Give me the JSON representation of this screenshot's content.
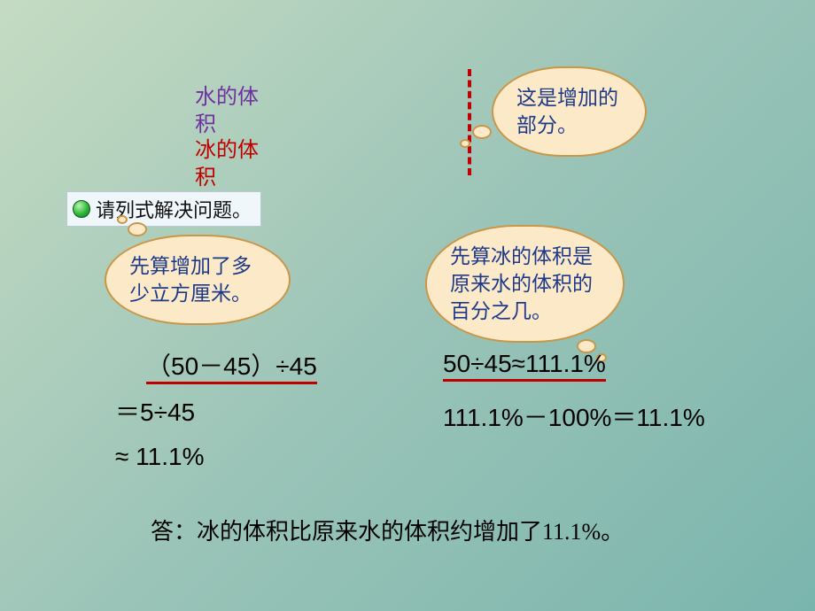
{
  "background": {
    "gradient_start": "#c5dbc2",
    "gradient_mid": "#9bc4b8",
    "gradient_end": "#7ab5ad"
  },
  "labels": {
    "water": "水的体积",
    "ice": "冰的体积",
    "water_color": "#7030a0",
    "ice_color": "#c00000"
  },
  "dash": {
    "color": "#c00000"
  },
  "bubbles": {
    "bg": "#fce9c7",
    "border": "#c9974a",
    "text_color": "#1d3a8a",
    "top": "这是增加的部分。",
    "left": "先算增加了多少立方厘米。",
    "right": "先算冰的体积是原来水的体积的百分之几。"
  },
  "prompt": {
    "text": "请列式解决问题。",
    "bg": "#f0f7fb",
    "border": "#b9c8d6"
  },
  "equations": {
    "left1": "（50－45）÷45",
    "left2": "＝5÷45",
    "left3": "≈ 11.1%",
    "right1": "50÷45≈111.1%",
    "right2": "111.1%－100%＝11.1%",
    "underline_color": "#c00000"
  },
  "answer": "答：冰的体积比原来水的体积约增加了11.1%。"
}
